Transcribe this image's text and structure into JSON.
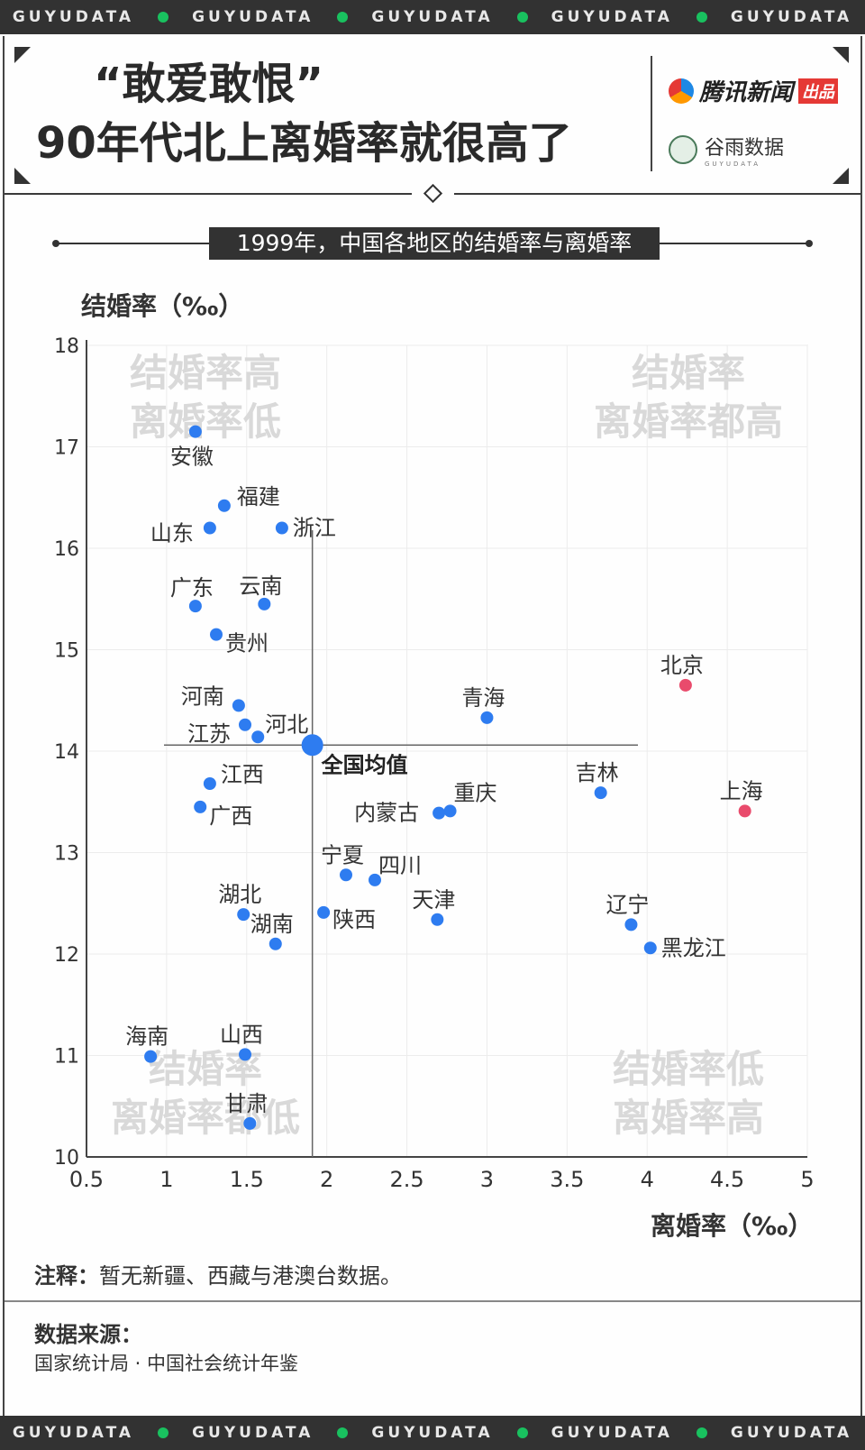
{
  "strip": {
    "text": "GUYUDATA"
  },
  "header": {
    "title_line1": "“敢爱敢恨”",
    "title_line2": "90年代北上离婚率就很高了",
    "brand1_name": "腾讯新闻",
    "brand1_badge": "出品",
    "brand2_name": "谷雨数据",
    "brand2_en": "GUYUDATA"
  },
  "footer": {
    "note_label": "注释：",
    "note_text": "暂无新疆、西藏与港澳台数据。",
    "source_label": "数据来源：",
    "source_text": "国家统计局 · 中国社会统计年鉴"
  },
  "colors": {
    "point": "#2e7cf0",
    "highlight": "#e94b6c",
    "quadrant_text": "#d9d9d9"
  },
  "chart_data": {
    "type": "scatter",
    "title": "1999年，中国各地区的结婚率与离婚率",
    "xlabel": "离婚率（‰）",
    "ylabel": "结婚率（‰）",
    "xlim": [
      0.5,
      5
    ],
    "ylim": [
      10,
      18
    ],
    "x_ticks": [
      "0.5",
      "1",
      "1.5",
      "2",
      "2.5",
      "3",
      "3.5",
      "4",
      "4.5",
      "5"
    ],
    "y_ticks": [
      "10",
      "11",
      "12",
      "13",
      "14",
      "15",
      "16",
      "17",
      "18"
    ],
    "grid": true,
    "quadrant_labels": [
      {
        "line1": "结婚率高",
        "line2": "离婚率低"
      },
      {
        "line1": "结婚率",
        "line2": "离婚率都高"
      },
      {
        "line1": "结婚率",
        "line2": "离婚率都低"
      },
      {
        "line1": "结婚率低",
        "line2": "离婚率高"
      }
    ],
    "average": {
      "name": "全国均值",
      "x": 1.91,
      "y": 14.06
    },
    "points": [
      {
        "name": "安徽",
        "x": 1.18,
        "y": 17.15
      },
      {
        "name": "福建",
        "x": 1.36,
        "y": 16.42
      },
      {
        "name": "山东",
        "x": 1.27,
        "y": 16.2
      },
      {
        "name": "浙江",
        "x": 1.72,
        "y": 16.2
      },
      {
        "name": "广东",
        "x": 1.18,
        "y": 15.43
      },
      {
        "name": "云南",
        "x": 1.61,
        "y": 15.45
      },
      {
        "name": "贵州",
        "x": 1.31,
        "y": 15.15
      },
      {
        "name": "河南",
        "x": 1.45,
        "y": 14.45
      },
      {
        "name": "江苏",
        "x": 1.49,
        "y": 14.26
      },
      {
        "name": "河北",
        "x": 1.57,
        "y": 14.14
      },
      {
        "name": "北京",
        "x": 4.24,
        "y": 14.65,
        "highlight": true
      },
      {
        "name": "青海",
        "x": 3.0,
        "y": 14.33
      },
      {
        "name": "江西",
        "x": 1.27,
        "y": 13.68
      },
      {
        "name": "广西",
        "x": 1.21,
        "y": 13.45
      },
      {
        "name": "吉林",
        "x": 3.71,
        "y": 13.59
      },
      {
        "name": "上海",
        "x": 4.61,
        "y": 13.41,
        "highlight": true
      },
      {
        "name": "重庆",
        "x": 2.77,
        "y": 13.41
      },
      {
        "name": "内蒙古",
        "x": 2.7,
        "y": 13.39
      },
      {
        "name": "宁夏",
        "x": 2.12,
        "y": 12.78
      },
      {
        "name": "四川",
        "x": 2.3,
        "y": 12.73
      },
      {
        "name": "湖北",
        "x": 1.48,
        "y": 12.39
      },
      {
        "name": "湖南",
        "x": 1.68,
        "y": 12.1
      },
      {
        "name": "陕西",
        "x": 1.98,
        "y": 12.41
      },
      {
        "name": "天津",
        "x": 2.69,
        "y": 12.34
      },
      {
        "name": "辽宁",
        "x": 3.9,
        "y": 12.29
      },
      {
        "name": "黑龙江",
        "x": 4.02,
        "y": 12.06
      },
      {
        "name": "海南",
        "x": 0.9,
        "y": 10.99
      },
      {
        "name": "山西",
        "x": 1.49,
        "y": 11.01
      },
      {
        "name": "甘肃",
        "x": 1.52,
        "y": 10.33
      }
    ]
  }
}
